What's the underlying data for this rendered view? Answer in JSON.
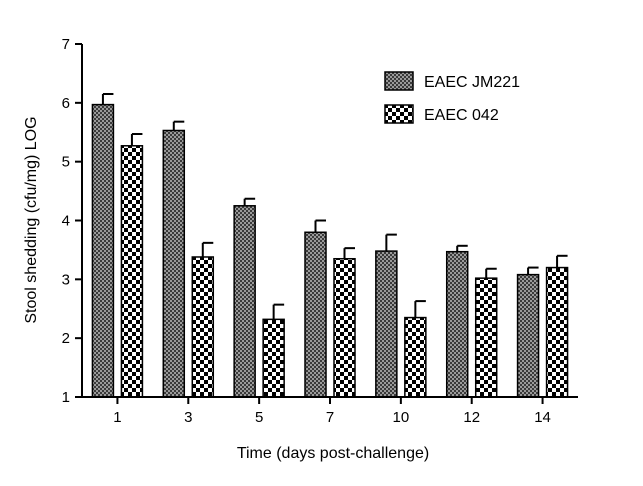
{
  "chart_data": {
    "type": "bar",
    "title": "",
    "xlabel": "Time (days post-challenge)",
    "ylabel": "Stool shedding (cfu/mg) LOG",
    "ylim": [
      1,
      7
    ],
    "yticks": [
      "1",
      "2",
      "3",
      "4",
      "5",
      "6",
      "7"
    ],
    "categories": [
      "1",
      "3",
      "5",
      "7",
      "10",
      "12",
      "14"
    ],
    "grid": false,
    "legend_position": "top-right",
    "series": [
      {
        "name": "EAEC JM221",
        "pattern": "fine-checker",
        "values": [
          5.97,
          5.53,
          4.25,
          3.8,
          3.48,
          3.47,
          3.08
        ],
        "errors": [
          0.18,
          0.15,
          0.12,
          0.2,
          0.28,
          0.1,
          0.12
        ]
      },
      {
        "name": "EAEC 042",
        "pattern": "coarse-checker",
        "values": [
          5.27,
          3.38,
          2.32,
          3.35,
          2.35,
          3.02,
          3.2
        ],
        "errors": [
          0.2,
          0.24,
          0.25,
          0.18,
          0.28,
          0.16,
          0.2
        ]
      }
    ]
  }
}
